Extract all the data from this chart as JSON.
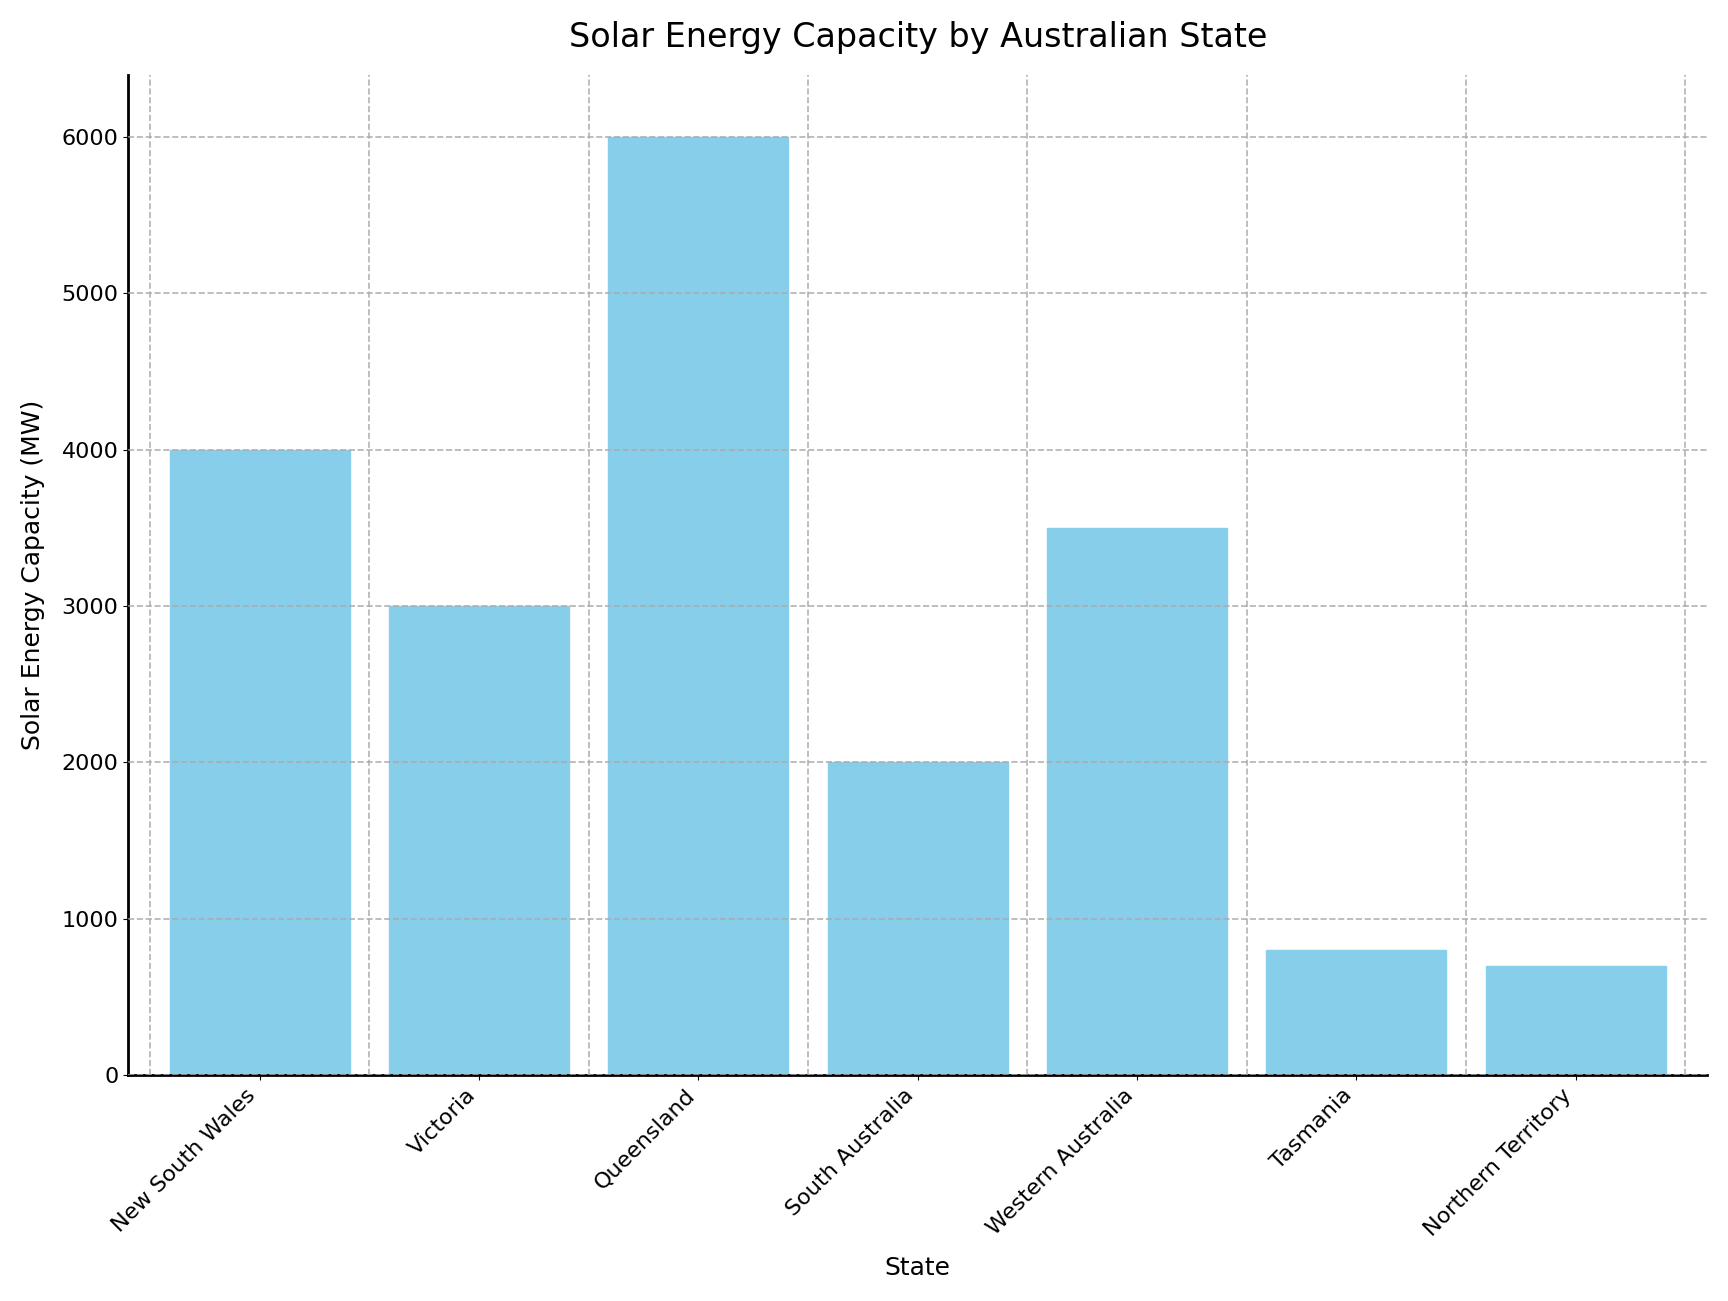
{
  "title": "Solar Energy Capacity by Australian State",
  "xlabel": "State",
  "ylabel": "Solar Energy Capacity (MW)",
  "categories": [
    "New South Wales",
    "Victoria",
    "Queensland",
    "South Australia",
    "Western Australia",
    "Tasmania",
    "Northern Territory"
  ],
  "values": [
    4000,
    3000,
    6000,
    2000,
    3500,
    800,
    700
  ],
  "bar_color": "#87CEEB",
  "bar_edgecolor": "#87CEEB",
  "ylim": [
    0,
    6400
  ],
  "yticks": [
    0,
    1000,
    2000,
    3000,
    4000,
    5000,
    6000
  ],
  "title_fontsize": 24,
  "label_fontsize": 18,
  "tick_fontsize": 16,
  "background_color": "#ffffff",
  "grid_color": "#aaaaaa",
  "grid_linestyle": "--",
  "grid_alpha": 0.9,
  "bar_width": 0.82
}
